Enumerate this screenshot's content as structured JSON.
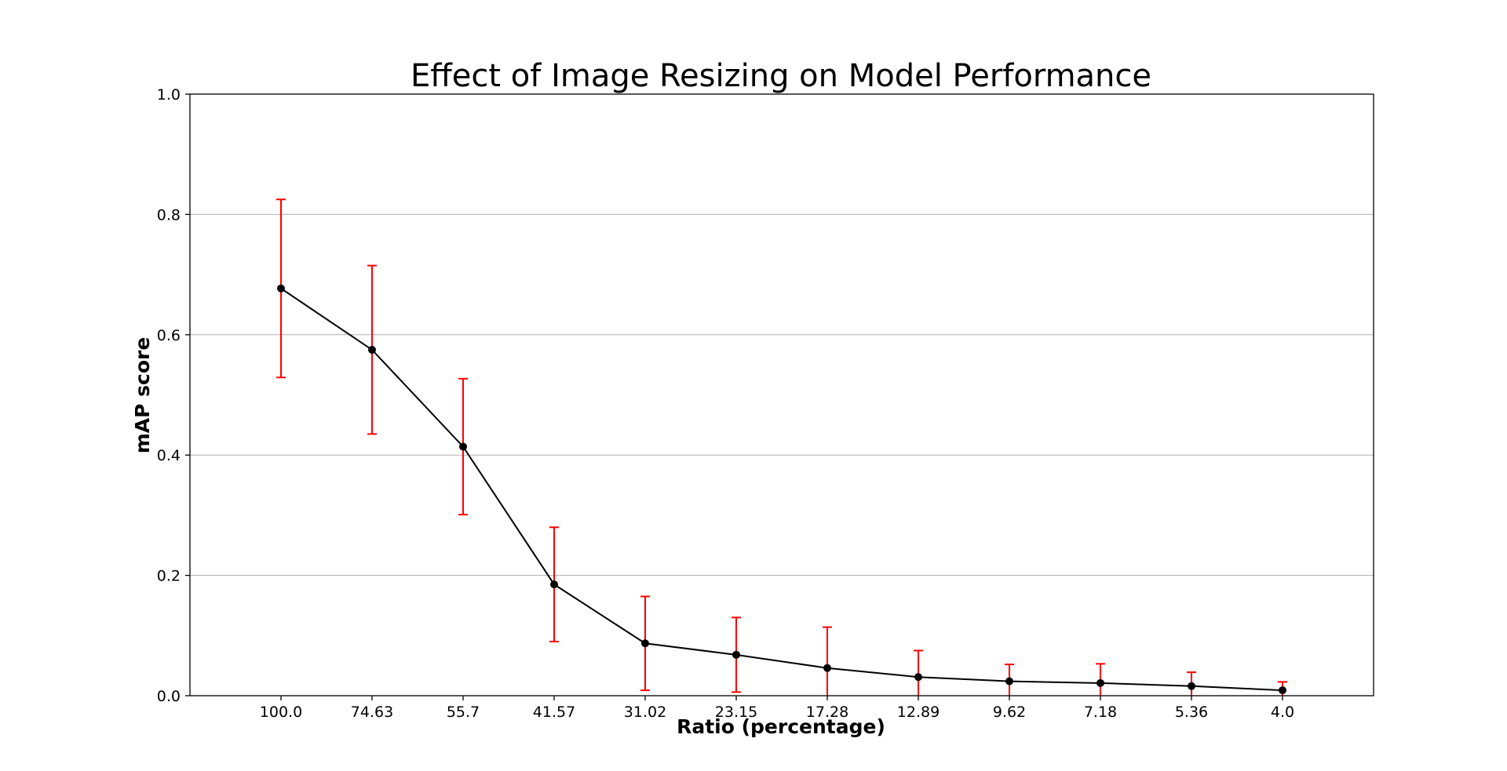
{
  "chart_data": {
    "type": "line",
    "title": "Effect of Image Resizing on Model Performance",
    "xlabel": "Ratio (percentage)",
    "ylabel": "mAP score",
    "ylim": [
      0,
      1.0
    ],
    "y_ticks": [
      "0.0",
      "0.2",
      "0.4",
      "0.6",
      "0.8",
      "1.0"
    ],
    "categories": [
      "100.0",
      "74.63",
      "55.7",
      "41.57",
      "31.02",
      "23.15",
      "17.28",
      "12.89",
      "9.62",
      "7.18",
      "5.36",
      "4.0"
    ],
    "series": [
      {
        "values": [
          0.677,
          0.575,
          0.414,
          0.185,
          0.087,
          0.068,
          0.046,
          0.031,
          0.024,
          0.021,
          0.016,
          0.009
        ],
        "error": [
          0.148,
          0.14,
          0.113,
          0.095,
          0.078,
          0.062,
          0.068,
          0.044,
          0.028,
          0.032,
          0.023,
          0.014
        ],
        "line_color": "#000000",
        "errorbar_color": "#ff0000"
      }
    ],
    "grid": "horizontal",
    "legend": "none"
  }
}
